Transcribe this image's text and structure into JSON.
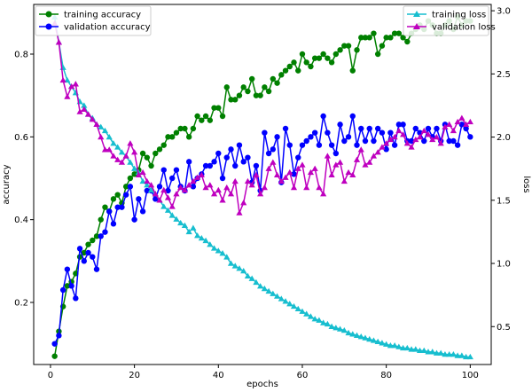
{
  "chart_data": {
    "type": "line",
    "xlabel": "epochs",
    "ylabel_left": "accuracy",
    "ylabel_right": "loss",
    "xlim": [
      -4,
      105
    ],
    "ylim_left": [
      0.05,
      0.92
    ],
    "ylim_right": [
      0.2,
      3.05
    ],
    "x_ticks": [
      0,
      20,
      40,
      60,
      80,
      100
    ],
    "y_left_ticks": [
      0.2,
      0.4,
      0.6,
      0.8
    ],
    "y_right_ticks": [
      0.5,
      1.0,
      1.5,
      2.0,
      2.5,
      3.0
    ],
    "grid": false,
    "legends": [
      {
        "placement": "upper-left",
        "entries": [
          "training accuracy",
          "validation accuracy"
        ]
      },
      {
        "placement": "upper-right",
        "entries": [
          "training loss",
          "validation loss"
        ]
      }
    ],
    "x": [
      1,
      2,
      3,
      4,
      5,
      6,
      7,
      8,
      9,
      10,
      11,
      12,
      13,
      14,
      15,
      16,
      17,
      18,
      19,
      20,
      21,
      22,
      23,
      24,
      25,
      26,
      27,
      28,
      29,
      30,
      31,
      32,
      33,
      34,
      35,
      36,
      37,
      38,
      39,
      40,
      41,
      42,
      43,
      44,
      45,
      46,
      47,
      48,
      49,
      50,
      51,
      52,
      53,
      54,
      55,
      56,
      57,
      58,
      59,
      60,
      61,
      62,
      63,
      64,
      65,
      66,
      67,
      68,
      69,
      70,
      71,
      72,
      73,
      74,
      75,
      76,
      77,
      78,
      79,
      80,
      81,
      82,
      83,
      84,
      85,
      86,
      87,
      88,
      89,
      90,
      91,
      92,
      93,
      94,
      95,
      96,
      97,
      98,
      99,
      100
    ],
    "series": [
      {
        "name": "training accuracy",
        "axis": "left",
        "color": "#008000",
        "marker": "circle",
        "values": [
          0.07,
          0.13,
          0.19,
          0.24,
          0.25,
          0.27,
          0.31,
          0.32,
          0.34,
          0.35,
          0.36,
          0.4,
          0.43,
          0.42,
          0.45,
          0.46,
          0.44,
          0.48,
          0.5,
          0.51,
          0.52,
          0.56,
          0.55,
          0.53,
          0.56,
          0.57,
          0.58,
          0.6,
          0.6,
          0.61,
          0.62,
          0.62,
          0.6,
          0.62,
          0.65,
          0.64,
          0.65,
          0.64,
          0.67,
          0.67,
          0.65,
          0.72,
          0.69,
          0.69,
          0.7,
          0.72,
          0.71,
          0.74,
          0.7,
          0.7,
          0.72,
          0.71,
          0.74,
          0.73,
          0.75,
          0.76,
          0.77,
          0.78,
          0.76,
          0.8,
          0.78,
          0.77,
          0.79,
          0.79,
          0.8,
          0.79,
          0.78,
          0.8,
          0.81,
          0.82,
          0.82,
          0.76,
          0.81,
          0.84,
          0.84,
          0.84,
          0.85,
          0.8,
          0.82,
          0.84,
          0.84,
          0.85,
          0.85,
          0.84,
          0.83,
          0.85,
          0.86,
          0.87,
          0.86,
          0.88,
          0.87,
          0.85,
          0.85,
          0.87,
          0.88,
          0.86,
          0.89,
          0.87,
          0.88,
          0.88
        ]
      },
      {
        "name": "validation accuracy",
        "axis": "left",
        "color": "#0000ff",
        "marker": "circle",
        "values": [
          0.1,
          0.12,
          0.23,
          0.28,
          0.24,
          0.21,
          0.33,
          0.3,
          0.32,
          0.31,
          0.28,
          0.36,
          0.37,
          0.42,
          0.39,
          0.43,
          0.43,
          0.46,
          0.48,
          0.4,
          0.45,
          0.42,
          0.47,
          0.47,
          0.45,
          0.48,
          0.52,
          0.47,
          0.5,
          0.52,
          0.48,
          0.47,
          0.54,
          0.48,
          0.5,
          0.51,
          0.53,
          0.53,
          0.54,
          0.56,
          0.5,
          0.55,
          0.57,
          0.53,
          0.58,
          0.54,
          0.55,
          0.49,
          0.53,
          0.47,
          0.61,
          0.56,
          0.57,
          0.6,
          0.49,
          0.62,
          0.58,
          0.51,
          0.55,
          0.58,
          0.59,
          0.6,
          0.61,
          0.58,
          0.65,
          0.61,
          0.58,
          0.56,
          0.63,
          0.59,
          0.6,
          0.65,
          0.58,
          0.62,
          0.59,
          0.62,
          0.59,
          0.62,
          0.61,
          0.57,
          0.61,
          0.58,
          0.63,
          0.63,
          0.59,
          0.59,
          0.62,
          0.61,
          0.59,
          0.62,
          0.6,
          0.62,
          0.59,
          0.63,
          0.59,
          0.59,
          0.58,
          0.63,
          0.62,
          0.6
        ]
      },
      {
        "name": "training loss",
        "axis": "right",
        "color": "#17becf",
        "marker": "triangle",
        "values": [
          2.95,
          2.75,
          2.55,
          2.45,
          2.4,
          2.35,
          2.28,
          2.25,
          2.18,
          2.15,
          2.1,
          2.08,
          2.05,
          2.0,
          1.95,
          1.92,
          1.88,
          1.85,
          1.8,
          1.75,
          1.72,
          1.65,
          1.62,
          1.58,
          1.55,
          1.5,
          1.45,
          1.42,
          1.38,
          1.35,
          1.32,
          1.3,
          1.25,
          1.28,
          1.22,
          1.2,
          1.18,
          1.15,
          1.12,
          1.1,
          1.08,
          1.05,
          1.0,
          0.98,
          0.96,
          0.94,
          0.9,
          0.88,
          0.85,
          0.82,
          0.8,
          0.78,
          0.76,
          0.74,
          0.72,
          0.7,
          0.68,
          0.66,
          0.64,
          0.62,
          0.6,
          0.58,
          0.56,
          0.55,
          0.53,
          0.52,
          0.5,
          0.49,
          0.48,
          0.47,
          0.45,
          0.44,
          0.43,
          0.42,
          0.41,
          0.4,
          0.39,
          0.38,
          0.37,
          0.36,
          0.35,
          0.35,
          0.34,
          0.33,
          0.33,
          0.32,
          0.32,
          0.31,
          0.31,
          0.3,
          0.3,
          0.29,
          0.29,
          0.28,
          0.28,
          0.28,
          0.27,
          0.27,
          0.26,
          0.26
        ]
      },
      {
        "name": "validation loss",
        "axis": "right",
        "color": "#bf00bf",
        "marker": "triangle",
        "values": [
          2.9,
          2.75,
          2.45,
          2.32,
          2.4,
          2.42,
          2.2,
          2.22,
          2.18,
          2.14,
          2.1,
          2.0,
          1.9,
          1.9,
          1.85,
          1.82,
          1.8,
          1.85,
          1.95,
          1.88,
          1.7,
          1.72,
          1.65,
          1.62,
          1.55,
          1.5,
          1.58,
          1.52,
          1.45,
          1.55,
          1.6,
          1.58,
          1.62,
          1.65,
          1.68,
          1.7,
          1.6,
          1.62,
          1.55,
          1.58,
          1.5,
          1.6,
          1.55,
          1.65,
          1.4,
          1.48,
          1.65,
          1.62,
          1.7,
          1.55,
          1.6,
          1.75,
          1.8,
          1.7,
          1.65,
          1.68,
          1.72,
          1.6,
          1.75,
          1.78,
          1.6,
          1.72,
          1.75,
          1.6,
          1.55,
          1.85,
          1.7,
          1.78,
          1.8,
          1.65,
          1.72,
          1.7,
          1.82,
          1.9,
          1.78,
          1.8,
          1.85,
          1.88,
          1.92,
          1.95,
          1.98,
          2.0,
          2.05,
          2.02,
          1.95,
          1.92,
          1.98,
          2.0,
          2.05,
          2.02,
          1.98,
          2.0,
          1.95,
          2.08,
          2.1,
          2.05,
          2.12,
          2.15,
          2.1,
          2.12
        ]
      }
    ]
  }
}
